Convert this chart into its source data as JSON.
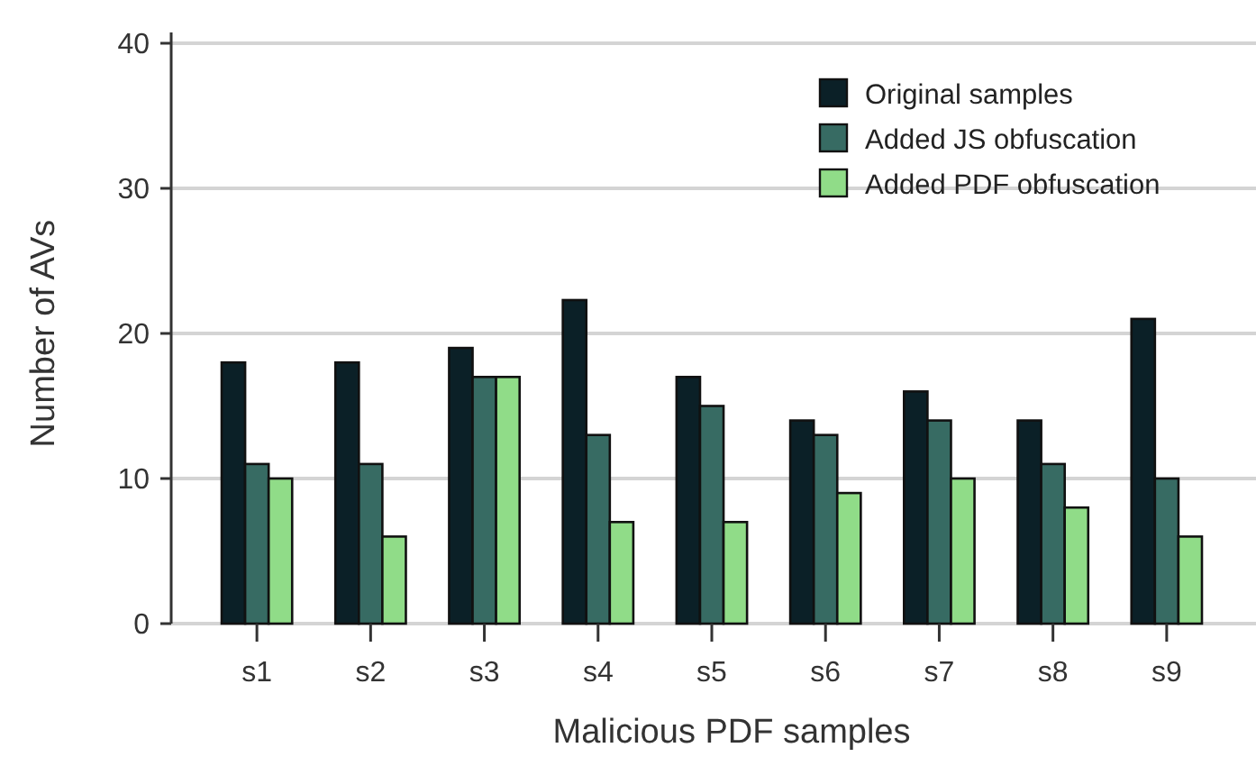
{
  "chart_data": {
    "type": "bar",
    "xlabel": "Malicious PDF samples",
    "ylabel": "Number of AVs",
    "categories": [
      "s1",
      "s2",
      "s3",
      "s4",
      "s5",
      "s6",
      "s7",
      "s8",
      "s9"
    ],
    "series": [
      {
        "name": "Original samples",
        "color": "#0b2027",
        "values": [
          18,
          18,
          19,
          22.3,
          17,
          14,
          16,
          14,
          21
        ]
      },
      {
        "name": "Added JS obfuscation",
        "color": "#376b63",
        "values": [
          11,
          11,
          17,
          13,
          15,
          13,
          14,
          11,
          10
        ]
      },
      {
        "name": "Added PDF obfuscation",
        "color": "#90dc88",
        "values": [
          10,
          6,
          17,
          7,
          7,
          9,
          10,
          8,
          6
        ]
      }
    ],
    "ylim": [
      0,
      40
    ],
    "yticks": [
      0,
      10,
      20,
      30,
      40
    ],
    "grid": "y",
    "legend": "top right"
  }
}
